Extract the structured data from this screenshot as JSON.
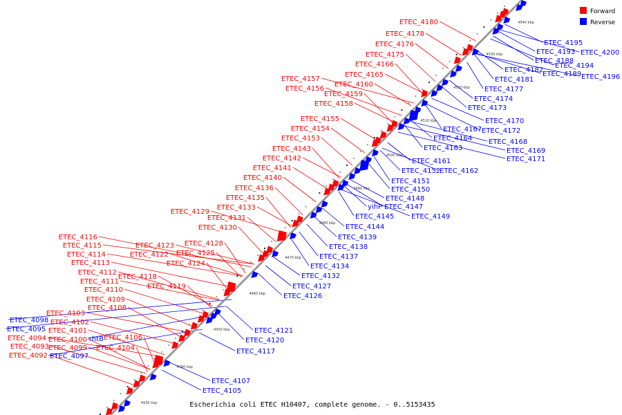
{
  "title": "Escherichia coli ETEC H10407, complete genome. - 0..5153435",
  "colors": {
    "forward": "#ff0000",
    "reverse": "#0000ff",
    "backbone": "#999999"
  },
  "legend": [
    {
      "label": "Forward",
      "color": "#ff0000"
    },
    {
      "label": "Reverse",
      "color": "#0000ff"
    }
  ],
  "ticks": [
    "4430 kbp",
    "4440 kbp",
    "4450 kbp",
    "4460 kbp",
    "4470 kbp",
    "4480 kbp",
    "4490 kbp",
    "4500 kbp",
    "4510 kbp",
    "4520 kbp",
    "4530 kbp",
    "4540 kbp"
  ],
  "forward_labels": [
    "ETEC_4180",
    "ETEC_4178",
    "ETEC_4176",
    "ETEC_4175",
    "ETEC_4166",
    "ETEC_4165",
    "ETEC_4160",
    "ETEC_4157",
    "ETEC_4156",
    "ETEC_4159",
    "ETEC_4158",
    "ETEC_4155",
    "ETEC_4154",
    "ETEC_4153",
    "ETEC_4143",
    "ETEC_4142",
    "ETEC_4141",
    "ETEC_4140",
    "ETEC_4136",
    "ETEC_4135",
    "ETEC_4133",
    "ETEC_4129",
    "ETEC_4131",
    "ETEC_4130",
    "ETEC_4128",
    "ETEC_4123",
    "ETEC_4122",
    "ETEC_4125",
    "ETEC_4124",
    "ETEC_4116",
    "ETEC_4115",
    "ETEC_4114",
    "ETEC_4113",
    "ETEC_4112",
    "ETEC_4118",
    "ETEC_4111",
    "ETEC_4119",
    "ETEC_4110",
    "ETEC_4109",
    "ETEC_4108",
    "ETEC_4103",
    "ETEC_4102",
    "ETEC_4101",
    "ETEC_4106",
    "ETEC_4100",
    "ETEC_4094",
    "ETEC_4099",
    "ETEC_4104",
    "ETEC_4093",
    "ETEC_4092"
  ],
  "reverse_labels": [
    "ETEC_4195",
    "ETEC_4193",
    "ETEC_4200",
    "ETEC_4188",
    "ETEC_4194",
    "ETEC_4182",
    "ETEC_4189",
    "ETEC_4196",
    "ETEC_4181",
    "ETEC_4177",
    "ETEC_4174",
    "ETEC_4173",
    "ETEC_4170",
    "ETEC_4167",
    "ETEC_4172",
    "ETEC_4164",
    "ETEC_4168",
    "ETEC_4163",
    "ETEC_4169",
    "ETEC_4171",
    "ETEC_4161",
    "ETEC_4152",
    "ETEC_4162",
    "ETEC_4151",
    "ETEC_4150",
    "ETEC_4148",
    "yihP",
    "ETEC_4147",
    "ETEC_4145",
    "ETEC_4149",
    "ETEC_4144",
    "ETEC_4139",
    "ETEC_4138",
    "ETEC_4137",
    "ETEC_4134",
    "ETEC_4132",
    "ETEC_4127",
    "ETEC_4126",
    "ETEC_4121",
    "ETEC_4120",
    "ETEC_4117",
    "ETEC_4098",
    "ETEC_4095",
    "rhtB",
    "ETEC_4097",
    "ETEC_4107",
    "ETEC_4105"
  ]
}
